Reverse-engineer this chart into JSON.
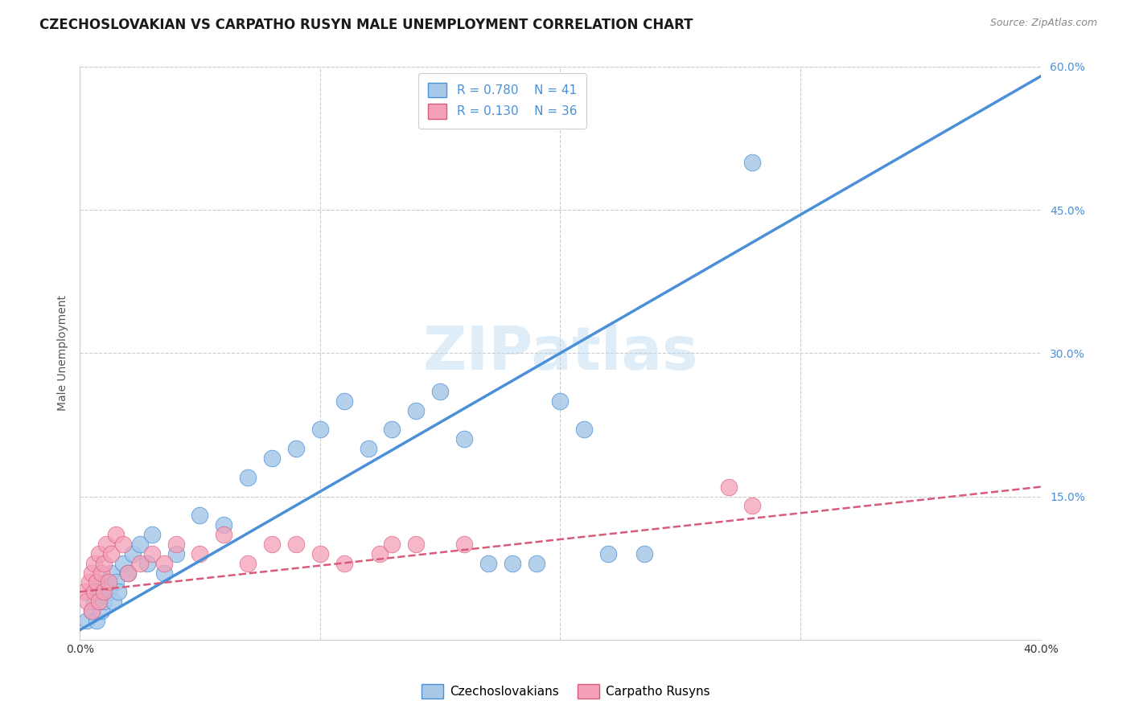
{
  "title": "CZECHOSLOVAKIAN VS CARPATHO RUSYN MALE UNEMPLOYMENT CORRELATION CHART",
  "source": "Source: ZipAtlas.com",
  "ylabel": "Male Unemployment",
  "x_tick_labels": [
    "0.0%",
    "",
    "",
    "",
    "40.0%"
  ],
  "x_tick_vals": [
    0,
    10,
    20,
    30,
    40
  ],
  "y_tick_labels": [
    "",
    "15.0%",
    "30.0%",
    "45.0%",
    "60.0%"
  ],
  "y_tick_vals": [
    0,
    15,
    30,
    45,
    60
  ],
  "xlim": [
    0,
    40
  ],
  "ylim": [
    0,
    60
  ],
  "blue_R": "0.780",
  "blue_N": "41",
  "pink_R": "0.130",
  "pink_N": "36",
  "blue_color": "#a8c8e8",
  "blue_line_color": "#4a90d9",
  "pink_color": "#f4a0b8",
  "pink_line_color": "#d95a7a",
  "legend_label_blue": "Czechoslovakians",
  "legend_label_pink": "Carpatho Rusyns",
  "watermark": "ZIPatlas",
  "blue_scatter_x": [
    0.3,
    0.5,
    0.6,
    0.7,
    0.8,
    0.9,
    1.0,
    1.1,
    1.2,
    1.3,
    1.4,
    1.5,
    1.6,
    1.8,
    2.0,
    2.2,
    2.5,
    2.8,
    3.0,
    3.5,
    4.0,
    5.0,
    6.0,
    7.0,
    8.0,
    9.0,
    10.0,
    11.0,
    12.0,
    13.0,
    14.0,
    15.0,
    16.0,
    17.0,
    18.0,
    19.0,
    20.0,
    21.0,
    22.0,
    23.5,
    28.0
  ],
  "blue_scatter_y": [
    2,
    3,
    4,
    2,
    5,
    3,
    4,
    6,
    5,
    7,
    4,
    6,
    5,
    8,
    7,
    9,
    10,
    8,
    11,
    7,
    9,
    13,
    12,
    17,
    19,
    20,
    22,
    25,
    20,
    22,
    24,
    26,
    21,
    8,
    8,
    8,
    25,
    22,
    9,
    9,
    50
  ],
  "pink_scatter_x": [
    0.2,
    0.3,
    0.4,
    0.5,
    0.5,
    0.6,
    0.6,
    0.7,
    0.8,
    0.8,
    0.9,
    1.0,
    1.0,
    1.1,
    1.2,
    1.3,
    1.5,
    1.8,
    2.0,
    2.5,
    3.0,
    3.5,
    4.0,
    5.0,
    6.0,
    7.0,
    8.0,
    9.0,
    10.0,
    11.0,
    12.5,
    13.0,
    14.0,
    16.0,
    27.0,
    28.0
  ],
  "pink_scatter_y": [
    5,
    4,
    6,
    7,
    3,
    8,
    5,
    6,
    9,
    4,
    7,
    8,
    5,
    10,
    6,
    9,
    11,
    10,
    7,
    8,
    9,
    8,
    10,
    9,
    11,
    8,
    10,
    10,
    9,
    8,
    9,
    10,
    10,
    10,
    16,
    14
  ],
  "blue_line_x": [
    0,
    40
  ],
  "blue_line_y": [
    1,
    59
  ],
  "pink_line_x": [
    0,
    40
  ],
  "pink_line_y": [
    5,
    16
  ],
  "background_color": "#ffffff",
  "grid_color": "#cccccc",
  "title_fontsize": 12,
  "label_fontsize": 10,
  "tick_fontsize": 10,
  "legend_fontsize": 11,
  "source_fontsize": 9
}
